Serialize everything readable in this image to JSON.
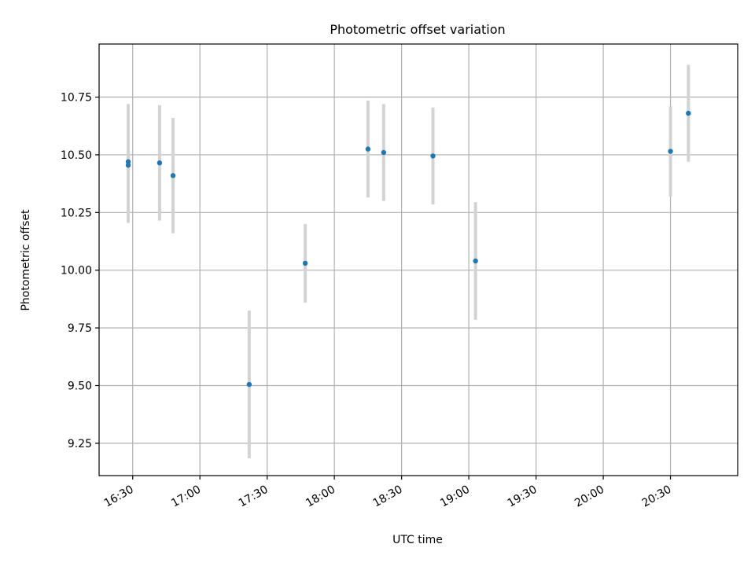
{
  "chart_data": {
    "type": "scatter",
    "title": "Photometric offset variation",
    "xlabel": "UTC time",
    "ylabel": "Photometric offset",
    "x_tick_labels": [
      "16:30",
      "17:00",
      "17:30",
      "18:00",
      "18:30",
      "19:00",
      "19:30",
      "20:00",
      "20:30"
    ],
    "y_tick_labels": [
      "9.25",
      "9.50",
      "9.75",
      "10.00",
      "10.25",
      "10.50",
      "10.75"
    ],
    "xlim": [
      "16:15",
      "21:00"
    ],
    "ylim": [
      9.11,
      10.98
    ],
    "grid": true,
    "series": [
      {
        "x": [
          "16:28",
          "16:28",
          "16:42",
          "16:48",
          "17:22",
          "17:47",
          "18:15",
          "18:22",
          "18:44",
          "19:03",
          "20:30",
          "20:38"
        ],
        "y": [
          10.47,
          10.455,
          10.465,
          10.41,
          9.505,
          10.03,
          10.525,
          10.51,
          10.495,
          10.04,
          10.515,
          10.68
        ],
        "err": [
          0.25,
          0.25,
          0.25,
          0.25,
          0.32,
          0.17,
          0.21,
          0.21,
          0.21,
          0.255,
          0.195,
          0.21
        ]
      }
    ],
    "colors": {
      "point": "#1f77b4",
      "errorbar": "#d3d3d3",
      "grid": "#b0b0b0",
      "axes": "#000000"
    }
  }
}
